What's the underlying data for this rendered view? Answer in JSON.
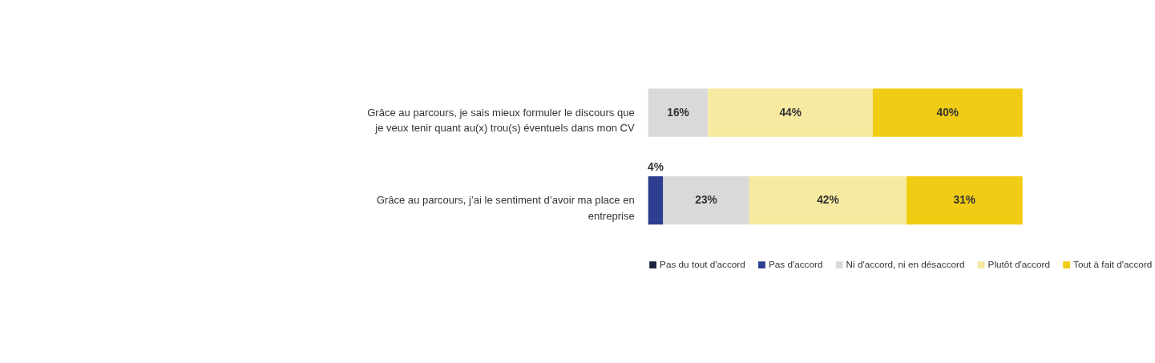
{
  "chart_data": {
    "type": "bar",
    "orientation": "horizontal",
    "stacked": true,
    "categories": [
      "Grâce au parcours, je sais mieux formuler le discours que je veux tenir quant au(x) trou(s) éventuels dans mon CV",
      "Grâce au parcours, j’ai le sentiment d’avoir ma place en entreprise"
    ],
    "xlim": [
      0,
      100
    ],
    "legend": "bottom",
    "series": [
      {
        "name": "Pas du tout d'accord",
        "color": "#1c2340",
        "values": [
          null,
          null
        ],
        "value_labels": [
          null,
          null
        ]
      },
      {
        "name": "Pas d'accord",
        "color": "#2e3f8f",
        "values": [
          null,
          4
        ],
        "value_labels": [
          null,
          "4%"
        ]
      },
      {
        "name": "Ni d'accord, ni en désaccord",
        "color": "#d9d9d9",
        "values": [
          16,
          23
        ],
        "value_labels": [
          "16%",
          "23%"
        ]
      },
      {
        "name": "Plutôt d'accord",
        "color": "#f7eaa0",
        "values": [
          44,
          42
        ],
        "value_labels": [
          "44%",
          "42%"
        ]
      },
      {
        "name": "Tout à fait d'accord",
        "color": "#f0cc14",
        "values": [
          40,
          31
        ],
        "value_labels": [
          "40%",
          "31%"
        ]
      }
    ]
  }
}
